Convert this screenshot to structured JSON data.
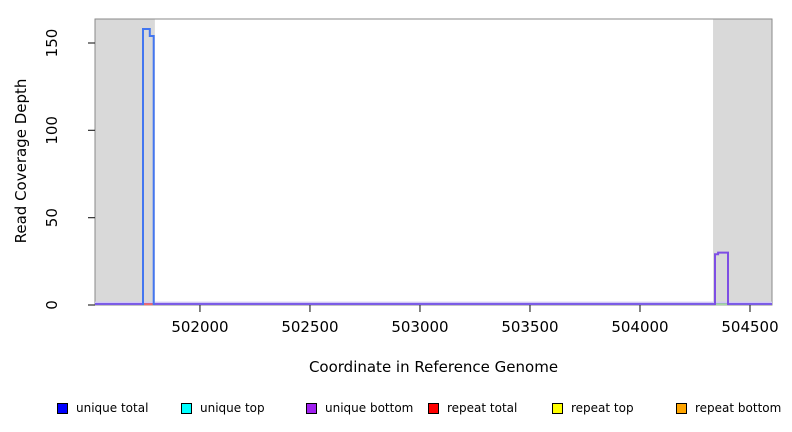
{
  "axes": {
    "x_label": "Coordinate in Reference Genome",
    "y_label": "Read Coverage Depth"
  },
  "chart_data": {
    "type": "line",
    "title": "",
    "xlabel": "Coordinate in Reference Genome",
    "ylabel": "Read Coverage Depth",
    "xlim": [
      501523,
      504600
    ],
    "ylim": [
      0,
      163.74
    ],
    "x_ticks": [
      502000,
      502500,
      503000,
      503500,
      504000,
      504500
    ],
    "y_ticks": [
      0,
      50,
      100,
      150
    ],
    "grid": false,
    "band_color": "#d9d9d9",
    "box_color": "#898989",
    "tick_color": "#303030",
    "shaded_regions": [
      {
        "name": "left-shaded-region",
        "x0": 501523,
        "x1": 501795
      },
      {
        "name": "right-shaded-region",
        "x0": 504332,
        "x1": 504600
      }
    ],
    "baseline": {
      "value": 0,
      "core_color": "#7b5ce6",
      "halo_color": "#d2c9f4"
    },
    "baseline_overlays": [
      {
        "name": "repeat-total-baseline-segment",
        "x0": 501745,
        "x1": 501790,
        "color": "#f26a6a"
      },
      {
        "name": "repeat-top-baseline-segment",
        "x0": 504343,
        "x1": 504398,
        "color": "#a6d9a2"
      }
    ],
    "series": [
      {
        "name": "unique total",
        "legend_color": "#0000ff",
        "draw_color": "#4376f0",
        "points": [
          [
            501741,
            0
          ],
          [
            501741,
            158
          ],
          [
            501772,
            158
          ],
          [
            501772,
            154
          ],
          [
            501790,
            154
          ],
          [
            501790,
            0
          ]
        ]
      },
      {
        "name": "unique bottom",
        "legend_color": "#a020f0",
        "draw_color": "#7e4ee4",
        "points": [
          [
            504341,
            0
          ],
          [
            504341,
            29
          ],
          [
            504355,
            29
          ],
          [
            504355,
            30
          ],
          [
            504400,
            30
          ],
          [
            504400,
            0
          ]
        ]
      },
      {
        "name": "unique top",
        "legend_color": "#00ffff",
        "draw_color": "#00ffff",
        "points": []
      },
      {
        "name": "repeat total",
        "legend_color": "#ff0000",
        "draw_color": "#ff0000",
        "points": []
      },
      {
        "name": "repeat top",
        "legend_color": "#ffff00",
        "draw_color": "#ffff00",
        "points": []
      },
      {
        "name": "repeat bottom",
        "legend_color": "#ffa500",
        "draw_color": "#ffa500",
        "points": []
      }
    ],
    "legend": [
      {
        "label": "unique total",
        "color": "#0000ff"
      },
      {
        "label": "unique top",
        "color": "#00ffff"
      },
      {
        "label": "unique bottom",
        "color": "#a020f0"
      },
      {
        "label": "repeat total",
        "color": "#ff0000"
      },
      {
        "label": "repeat top",
        "color": "#ffff00"
      },
      {
        "label": "repeat bottom",
        "color": "#ffa500"
      }
    ]
  }
}
